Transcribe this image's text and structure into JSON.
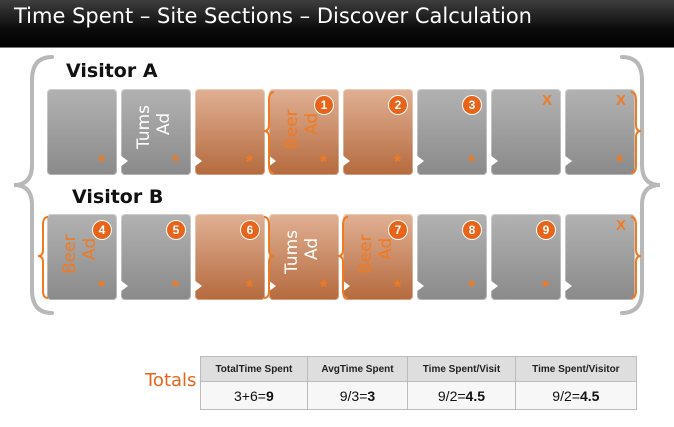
{
  "title": "Time Spent – Site Sections – Discover Calculation",
  "visitors": [
    {
      "label": "Visitor A",
      "tiles": [
        {
          "kind": "plain",
          "text": "",
          "badge": "",
          "mark": "*"
        },
        {
          "kind": "plain",
          "text": "Tums Ad",
          "textColor": "#ffffff",
          "badge": "",
          "mark": "*"
        },
        {
          "kind": "ad",
          "text": "",
          "badge": "",
          "mark": "*"
        },
        {
          "kind": "ad",
          "text": "Beer Ad",
          "textColor": "#f07a22",
          "badge": "1",
          "mark": "*"
        },
        {
          "kind": "ad",
          "text": "",
          "badge": "2",
          "mark": "*"
        },
        {
          "kind": "plain",
          "text": "",
          "badge": "3",
          "mark": "*"
        },
        {
          "kind": "plain",
          "text": "",
          "badge": "",
          "x": "X",
          "mark": ""
        },
        {
          "kind": "plain",
          "text": "",
          "badge": "",
          "x": "X",
          "mark": "*"
        }
      ]
    },
    {
      "label": "Visitor B",
      "tiles": [
        {
          "kind": "plain",
          "text": "Beer Ad",
          "textColor": "#f07a22",
          "badge": "4",
          "mark": "*"
        },
        {
          "kind": "plain",
          "text": "",
          "badge": "5",
          "mark": "*"
        },
        {
          "kind": "ad",
          "text": "",
          "badge": "6",
          "mark": "*"
        },
        {
          "kind": "ad",
          "text": "Tums Ad",
          "textColor": "#ffffff",
          "badge": "",
          "mark": "*"
        },
        {
          "kind": "ad",
          "text": "Beer Ad",
          "textColor": "#f07a22",
          "badge": "7",
          "mark": "*"
        },
        {
          "kind": "plain",
          "text": "",
          "badge": "8",
          "mark": "*"
        },
        {
          "kind": "plain",
          "text": "",
          "badge": "9",
          "mark": "*"
        },
        {
          "kind": "plain",
          "text": "",
          "badge": "",
          "x": "X",
          "mark": ""
        }
      ]
    }
  ],
  "totals": {
    "label": "Totals",
    "headers": [
      "TotalTime Spent",
      "AvgTime Spent",
      "Time Spent/Visit",
      "Time Spent/Visitor"
    ],
    "cells": [
      {
        "pre": "3+6=",
        "bold": "9"
      },
      {
        "pre": "9/3=",
        "bold": "3"
      },
      {
        "pre": "9/2=",
        "bold": "4.5"
      },
      {
        "pre": "9/2=",
        "bold": "4.5"
      }
    ]
  },
  "colors": {
    "accent": "#e8641b",
    "brace": "#b8b8b8",
    "tile": "#9a9a9a",
    "adTile": "#c98458"
  }
}
